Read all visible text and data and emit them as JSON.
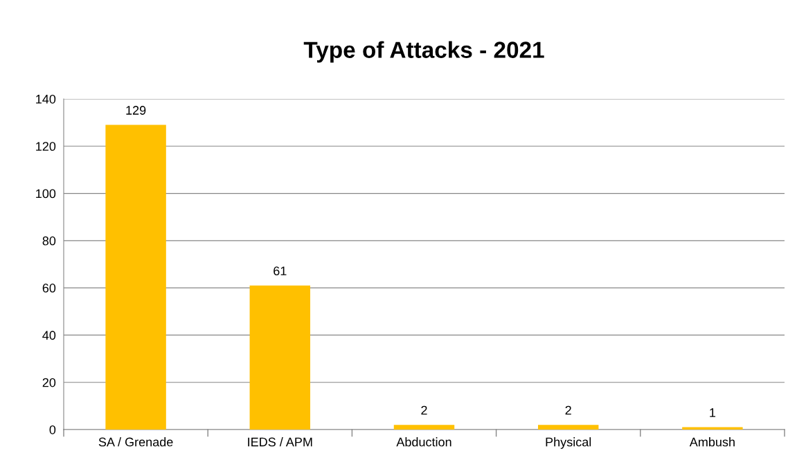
{
  "chart_data": {
    "type": "bar",
    "title": "Type of Attacks - 2021",
    "categories": [
      "SA / Grenade",
      "IEDS / APM",
      "Abduction",
      "Physical",
      "Ambush"
    ],
    "values": [
      129,
      61,
      2,
      2,
      1
    ],
    "color": "#ffc000",
    "ylim": [
      0,
      140
    ],
    "yticks": [
      0,
      20,
      40,
      60,
      80,
      100,
      120,
      140
    ],
    "grid": "y",
    "data_labels": true,
    "legend": false
  }
}
